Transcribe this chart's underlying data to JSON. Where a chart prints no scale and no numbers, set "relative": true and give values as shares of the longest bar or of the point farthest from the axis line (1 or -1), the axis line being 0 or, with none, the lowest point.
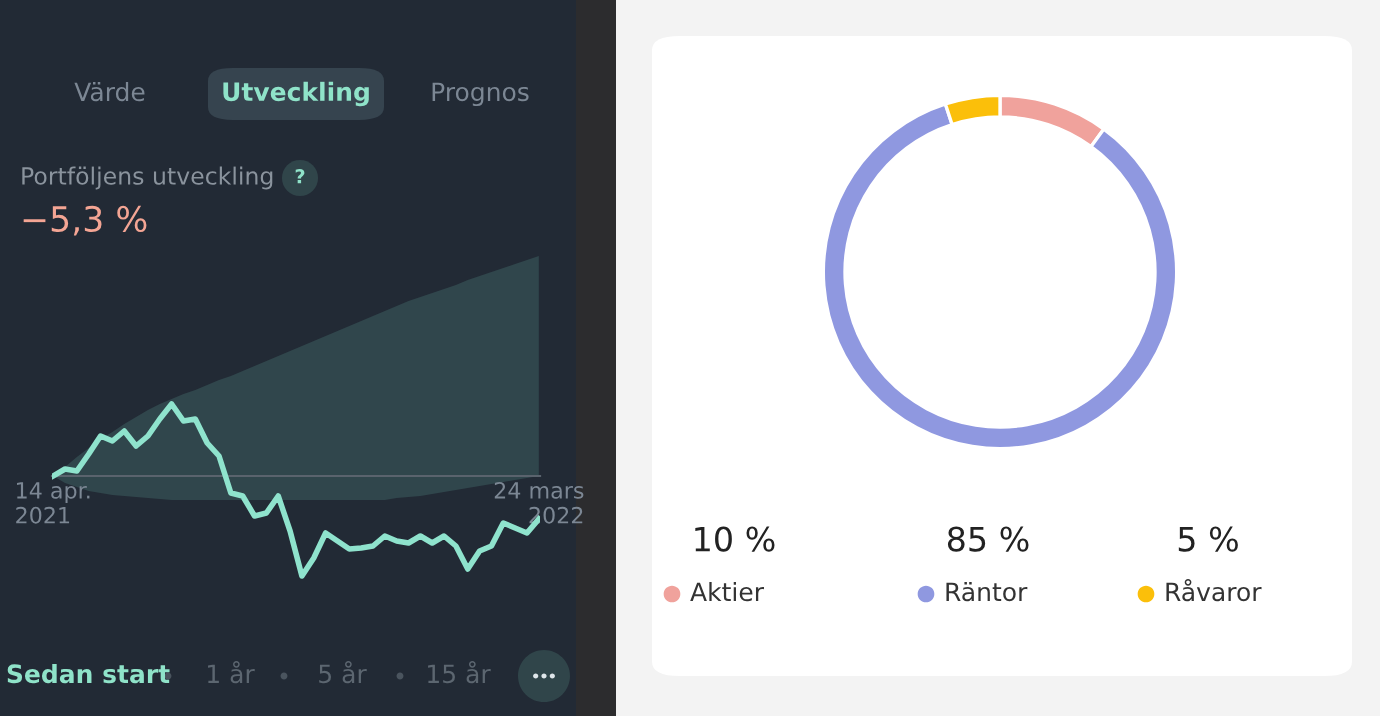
{
  "chart_data": [
    {
      "type": "line",
      "title": "Portföljens utveckling",
      "subtitle": "−5,3 %",
      "relative": true,
      "annotations": [
        "Värde",
        "Utveckling",
        "Prognos",
        "?",
        "Sedan start",
        "1 år",
        "5 år",
        "15 år"
      ],
      "categories": [
        "14 apr.\n2021",
        null,
        null,
        null,
        null,
        null,
        null,
        null,
        null,
        null,
        null,
        null,
        null,
        null,
        null,
        null,
        null,
        null,
        null,
        null,
        null,
        null,
        null,
        null,
        null,
        null,
        null,
        null,
        null,
        null,
        null,
        null,
        null,
        null,
        null,
        null,
        null,
        null,
        null,
        null,
        null,
        "24 mars\n2022"
      ],
      "series": [
        {
          "color": "#8fe3cd",
          "values": [
            0,
            0.07,
            0.05,
            0.22,
            0.4,
            0.35,
            0.45,
            0.3,
            0.4,
            0.57,
            0.72,
            0.55,
            0.57,
            0.33,
            0.2,
            -0.17,
            -0.2,
            -0.4,
            -0.37,
            -0.2,
            -0.55,
            -1,
            -0.82,
            -0.57,
            -0.65,
            -0.73,
            -0.72,
            -0.7,
            -0.6,
            -0.65,
            -0.67,
            -0.6,
            -0.67,
            -0.6,
            -0.7,
            -0.93,
            -0.75,
            -0.7,
            -0.47,
            -0.52,
            -0.57,
            -0.43
          ],
          "upper": [
            0,
            0.09,
            0.19,
            0.28,
            0.37,
            0.44,
            0.52,
            0.59,
            0.66,
            0.72,
            0.77,
            0.82,
            0.86,
            0.91,
            0.96,
            1.0,
            1.05,
            1.1,
            1.15,
            1.2,
            1.25,
            1.3,
            1.35,
            1.4,
            1.45,
            1.5,
            1.55,
            1.6,
            1.65,
            1.7,
            1.75,
            1.79,
            1.83,
            1.87,
            1.91,
            1.96,
            2.0,
            2.04,
            2.08,
            2.12,
            2.16,
            2.2
          ],
          "lower": [
            0,
            -0.07,
            -0.11,
            -0.15,
            -0.17,
            -0.19,
            -0.2,
            -0.21,
            -0.22,
            -0.23,
            -0.24,
            -0.24,
            -0.24,
            -0.24,
            -0.24,
            -0.24,
            -0.24,
            -0.24,
            -0.24,
            -0.24,
            -0.24,
            -0.24,
            -0.24,
            -0.24,
            -0.24,
            -0.24,
            -0.24,
            -0.24,
            -0.24,
            -0.22,
            -0.21,
            -0.2,
            -0.18,
            -0.16,
            -0.14,
            -0.12,
            -0.1,
            -0.08,
            -0.06,
            -0.04,
            -0.02,
            0
          ]
        }
      ]
    },
    {
      "type": "donut",
      "categories": [
        "Aktier",
        "Räntor",
        "Råvaror"
      ],
      "values": [
        10,
        85,
        5
      ],
      "colors": [
        "#f0a29c",
        "#8f98e0",
        "#fbbf0a"
      ],
      "value_labels": [
        "10 %",
        "85 %",
        "5 %"
      ],
      "legend": "bottom"
    }
  ]
}
